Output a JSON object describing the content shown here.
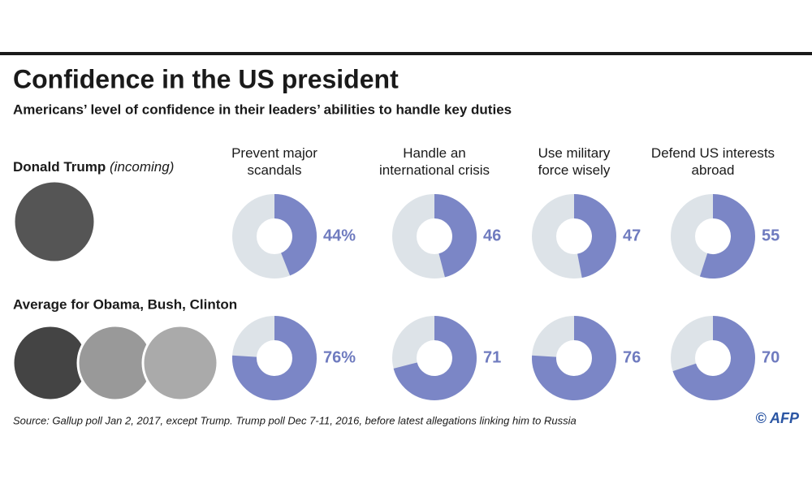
{
  "chart_data": {
    "type": "donut",
    "title": "Confidence in the US president",
    "subtitle": "Americans’ level of confidence in their leaders’ abilities to handle key duties",
    "categories": [
      "Prevent major scandals",
      "Handle an international crisis",
      "Use military force wisely",
      "Defend US interests abroad"
    ],
    "series": [
      {
        "name": "Donald Trump",
        "note": "(incoming)",
        "color": "#7b86c6",
        "values": [
          44,
          46,
          47,
          55
        ],
        "value_labels": [
          "44%",
          "46",
          "47",
          "55"
        ]
      },
      {
        "name": "Average for Obama, Bush, Clinton",
        "color": "#7b86c6",
        "values": [
          76,
          71,
          76,
          70
        ],
        "value_labels": [
          "76%",
          "71",
          "76",
          "70"
        ]
      }
    ],
    "ylim": [
      0,
      100
    ],
    "track_color": "#dde3e8",
    "source": "Source: Gallup poll Jan 2, 2017, except Trump. Trump poll Dec 7-11, 2016, before latest allegations linking him to Russia",
    "credit": "© AFP"
  }
}
